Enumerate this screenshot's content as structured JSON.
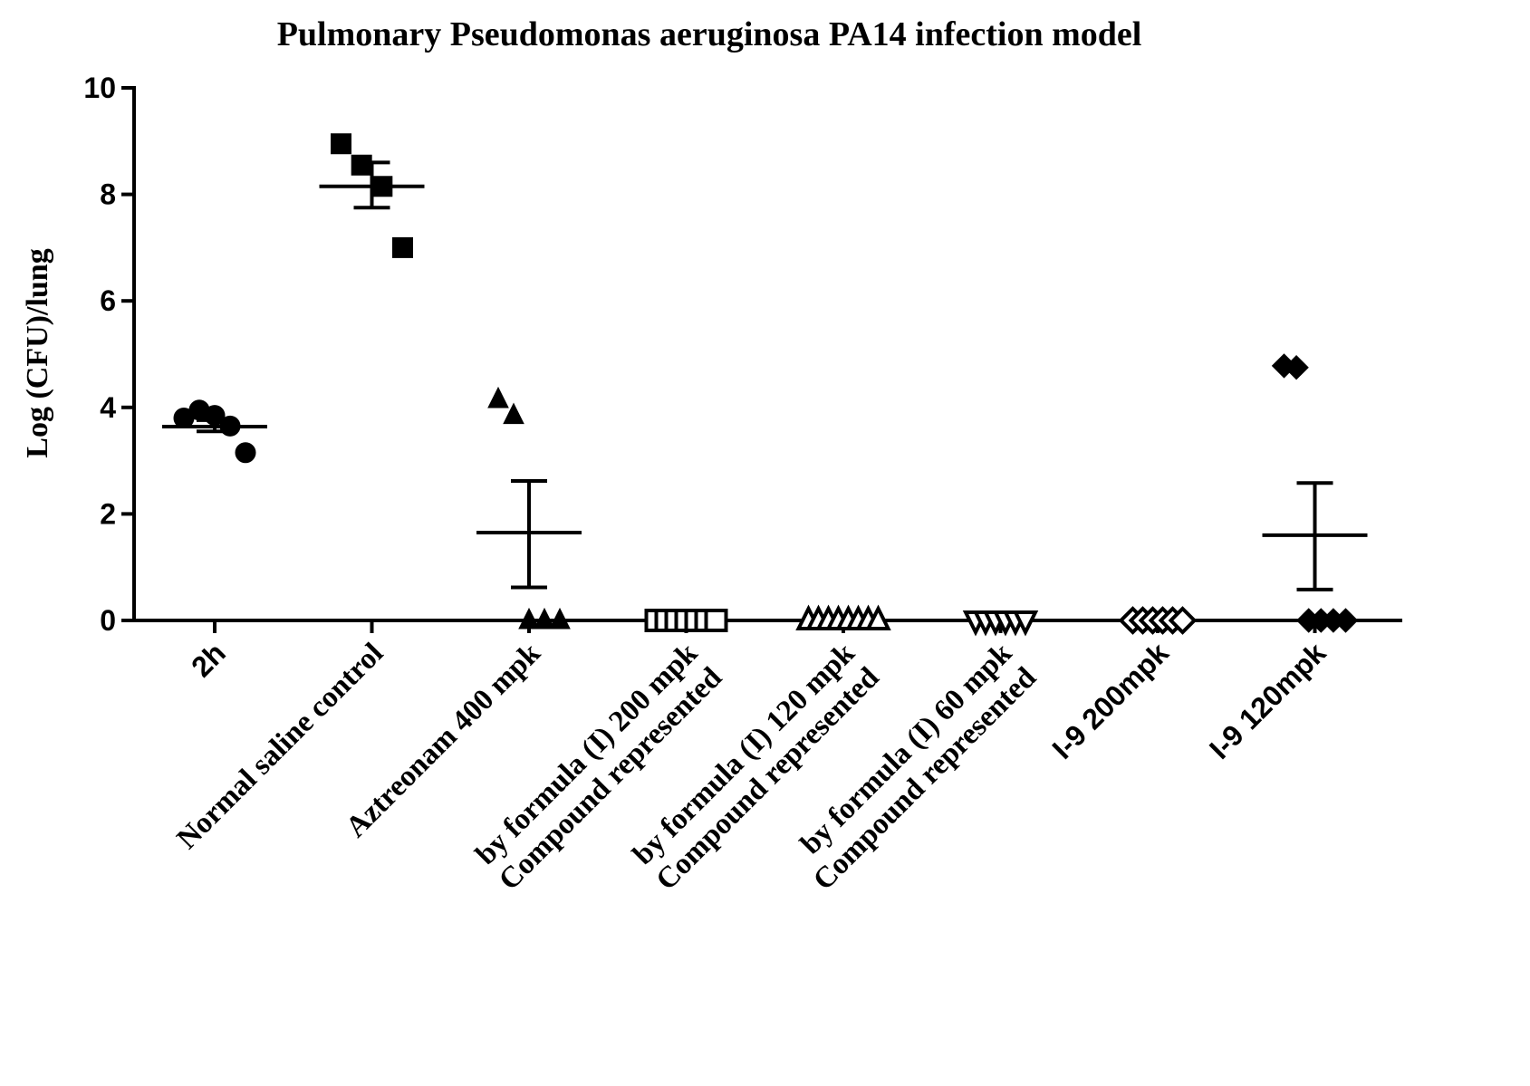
{
  "chart_data": {
    "type": "scatter",
    "title": "Pulmonary Pseudomonas aeruginosa PA14 infection model",
    "ylabel": "Log (CFU)/lung",
    "xlabel": "",
    "ylim": [
      0,
      10
    ],
    "yticks": [
      "0",
      "2",
      "4",
      "6",
      "8",
      "10"
    ],
    "grid": false,
    "legend": "none",
    "groups": [
      {
        "label_lines": [
          "2h"
        ],
        "marker": "circle",
        "values": [
          3.8,
          3.95,
          3.85,
          3.65,
          3.15
        ],
        "mean": 3.64,
        "sem_low": 3.55,
        "sem_high": 3.76
      },
      {
        "label_lines": [
          "Normal saline control"
        ],
        "marker": "square",
        "values": [
          8.95,
          8.55,
          8.15,
          7.0
        ],
        "mean": 8.15,
        "sem_low": 7.75,
        "sem_high": 8.6
      },
      {
        "label_lines": [
          "Aztreonam 400 mpk"
        ],
        "marker": "triangle-up",
        "values": [
          4.15,
          3.85,
          0,
          0,
          0
        ],
        "mean": 1.65,
        "sem_low": 0.62,
        "sem_high": 2.62
      },
      {
        "label_lines": [
          "Compound represented",
          "by formula (I)  200 mpk"
        ],
        "marker": "square-open",
        "values": [
          0,
          0,
          0,
          0,
          0,
          0,
          0
        ],
        "mean": 0,
        "sem_low": 0,
        "sem_high": 0
      },
      {
        "label_lines": [
          "Compound represented",
          "by formula (I) 120 mpk"
        ],
        "marker": "triangle-open",
        "values": [
          0,
          0,
          0,
          0,
          0,
          0,
          0,
          0
        ],
        "mean": 0,
        "sem_low": 0,
        "sem_high": 0
      },
      {
        "label_lines": [
          "Compound represented",
          "by formula (I) 60 mpk"
        ],
        "marker": "triangle-down-open",
        "values": [
          0,
          0,
          0,
          0,
          0,
          0
        ],
        "mean": 0,
        "sem_low": 0,
        "sem_high": 0
      },
      {
        "label_lines": [
          "I-9  200mpk"
        ],
        "marker": "diamond-open",
        "values": [
          0,
          0,
          0,
          0,
          0,
          0
        ],
        "mean": 0,
        "sem_low": 0,
        "sem_high": 0
      },
      {
        "label_lines": [
          "I-9  120mpk"
        ],
        "marker": "diamond",
        "values": [
          4.78,
          4.75,
          0,
          0,
          0,
          0
        ],
        "mean": 1.6,
        "sem_low": 0.58,
        "sem_high": 2.58
      }
    ]
  }
}
